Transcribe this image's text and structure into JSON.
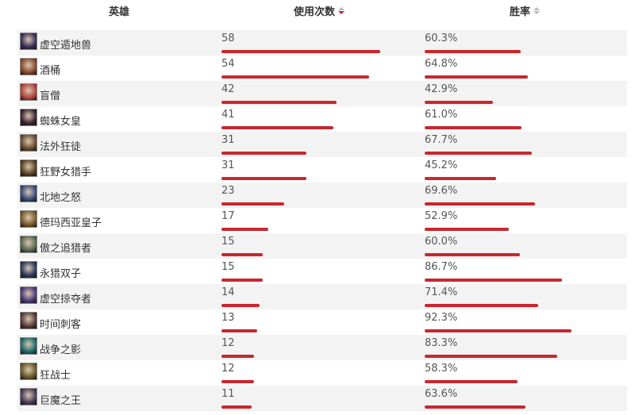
{
  "header": {
    "hero": "英雄",
    "uses": "使用次数",
    "winrate": "胜率"
  },
  "colors": {
    "bar": "#c8272e",
    "row_alt": "#f3f3f3"
  },
  "rows": [
    {
      "name": "虚空遁地兽",
      "uses": "58",
      "winrate": "60.3%",
      "avatar_color": "#3a2f5a"
    },
    {
      "name": "酒桶",
      "uses": "54",
      "winrate": "64.8%",
      "avatar_color": "#8a4b2a"
    },
    {
      "name": "盲僧",
      "uses": "42",
      "winrate": "42.9%",
      "avatar_color": "#b6453d"
    },
    {
      "name": "蜘蛛女皇",
      "uses": "41",
      "winrate": "61.0%",
      "avatar_color": "#3b2430"
    },
    {
      "name": "法外狂徒",
      "uses": "31",
      "winrate": "67.7%",
      "avatar_color": "#6b4a2f"
    },
    {
      "name": "狂野女猎手",
      "uses": "31",
      "winrate": "45.2%",
      "avatar_color": "#5a4022"
    },
    {
      "name": "北地之怒",
      "uses": "23",
      "winrate": "69.6%",
      "avatar_color": "#3a4c7a"
    },
    {
      "name": "德玛西亚皇子",
      "uses": "17",
      "winrate": "52.9%",
      "avatar_color": "#7a5a2a"
    },
    {
      "name": "傲之追猎者",
      "uses": "15",
      "winrate": "60.0%",
      "avatar_color": "#5a6a50"
    },
    {
      "name": "永猎双子",
      "uses": "15",
      "winrate": "86.7%",
      "avatar_color": "#2a3a5a"
    },
    {
      "name": "虚空掠夺者",
      "uses": "14",
      "winrate": "71.4%",
      "avatar_color": "#4a3a7a"
    },
    {
      "name": "时间刺客",
      "uses": "13",
      "winrate": "92.3%",
      "avatar_color": "#5a3a3a"
    },
    {
      "name": "战争之影",
      "uses": "12",
      "winrate": "83.3%",
      "avatar_color": "#1f6a6a"
    },
    {
      "name": "狂战士",
      "uses": "12",
      "winrate": "58.3%",
      "avatar_color": "#6a5a2a"
    },
    {
      "name": "巨魔之王",
      "uses": "11",
      "winrate": "63.6%",
      "avatar_color": "#4a3a5a"
    }
  ]
}
